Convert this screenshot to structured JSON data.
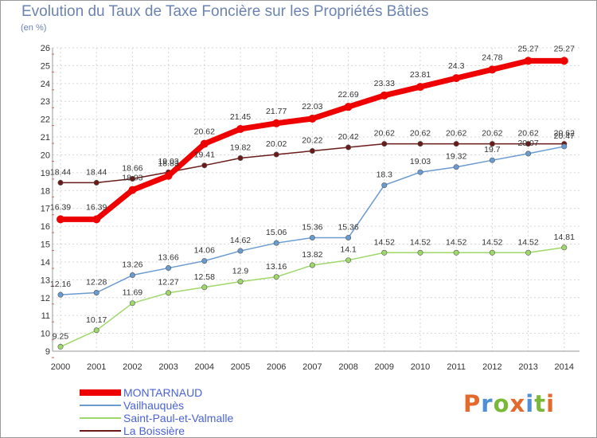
{
  "title": "Evolution du Taux de Taxe Foncière sur les Propriétés Bâties",
  "subtitle": "(en %)",
  "logo": {
    "text": "Proxiti",
    "letters": [
      {
        "ch": "P",
        "color": "#e36a2c"
      },
      {
        "ch": "r",
        "color": "#4f8fd6"
      },
      {
        "ch": "o",
        "color": "#7ab83a"
      },
      {
        "ch": "x",
        "color": "#e36a2c"
      },
      {
        "ch": "i",
        "color": "#4f8fd6"
      },
      {
        "ch": "t",
        "color": "#7ab83a"
      },
      {
        "ch": "i",
        "color": "#e36a2c"
      }
    ]
  },
  "chart_data": {
    "type": "line",
    "xlabel": "",
    "ylabel": "",
    "ylim": [
      9,
      26
    ],
    "yticks": [
      9,
      10,
      11,
      12,
      13,
      14,
      15,
      16,
      17,
      18,
      19,
      20,
      21,
      22,
      23,
      24,
      25,
      26
    ],
    "grid": true,
    "legend_position": "bottom-left",
    "x": [
      "2000",
      "2001",
      "2002",
      "2003",
      "2004",
      "2005",
      "2006",
      "2007",
      "2008",
      "2009",
      "2010",
      "2011",
      "2012",
      "2013",
      "2014"
    ],
    "series": [
      {
        "name": "MONTARNAUD",
        "color": "#ee0000",
        "width": 7,
        "values": [
          16.39,
          16.39,
          18.03,
          18.83,
          20.62,
          21.45,
          21.77,
          22.03,
          22.69,
          23.33,
          23.81,
          24.3,
          24.78,
          25.27,
          25.27
        ],
        "labels": [
          "16.39",
          "16.39",
          "18.03",
          "18.83",
          "20.62",
          "21.45",
          "21.77",
          "22.03",
          "22.69",
          "23.33",
          "23.81",
          "24.3",
          "24.78",
          "25.27",
          "25.27"
        ]
      },
      {
        "name": "Vailhauquès",
        "color": "#6a9bd0",
        "width": 1.5,
        "values": [
          12.16,
          12.28,
          13.26,
          13.66,
          14.06,
          14.62,
          15.06,
          15.36,
          15.36,
          18.3,
          19.03,
          19.32,
          19.7,
          20.07,
          20.47
        ],
        "labels": [
          "12.16",
          "12.28",
          "13.26",
          "13.66",
          "14.06",
          "14.62",
          "15.06",
          "15.36",
          "15.36",
          "18.3",
          "19.03",
          "19.32",
          "19.7",
          "20.07",
          "20.47"
        ]
      },
      {
        "name": "Saint-Paul-et-Valmalle",
        "color": "#9fd86a",
        "width": 1.5,
        "values": [
          9.25,
          10.17,
          11.69,
          12.27,
          12.58,
          12.9,
          13.16,
          13.82,
          14.1,
          14.52,
          14.52,
          14.52,
          14.52,
          14.52,
          14.81
        ],
        "labels": [
          "9.25",
          "10.17",
          "11.69",
          "12.27",
          "12.58",
          "12.9",
          "13.16",
          "13.82",
          "14.1",
          "14.52",
          "14.52",
          "14.52",
          "14.52",
          "14.52",
          "14.81"
        ]
      },
      {
        "name": "La Boissière",
        "color": "#6b1a1a",
        "width": 1.5,
        "values": [
          18.44,
          18.44,
          18.66,
          19.03,
          19.41,
          19.82,
          20.02,
          20.22,
          20.42,
          20.62,
          20.62,
          20.62,
          20.62,
          20.62,
          20.62
        ],
        "labels": [
          "18.44",
          "18.44",
          "18.66",
          "19.03",
          "19.41",
          "19.82",
          "20.02",
          "20.22",
          "20.42",
          "20.62",
          "20.62",
          "20.62",
          "20.62",
          "20.62",
          "20.62"
        ]
      }
    ]
  }
}
